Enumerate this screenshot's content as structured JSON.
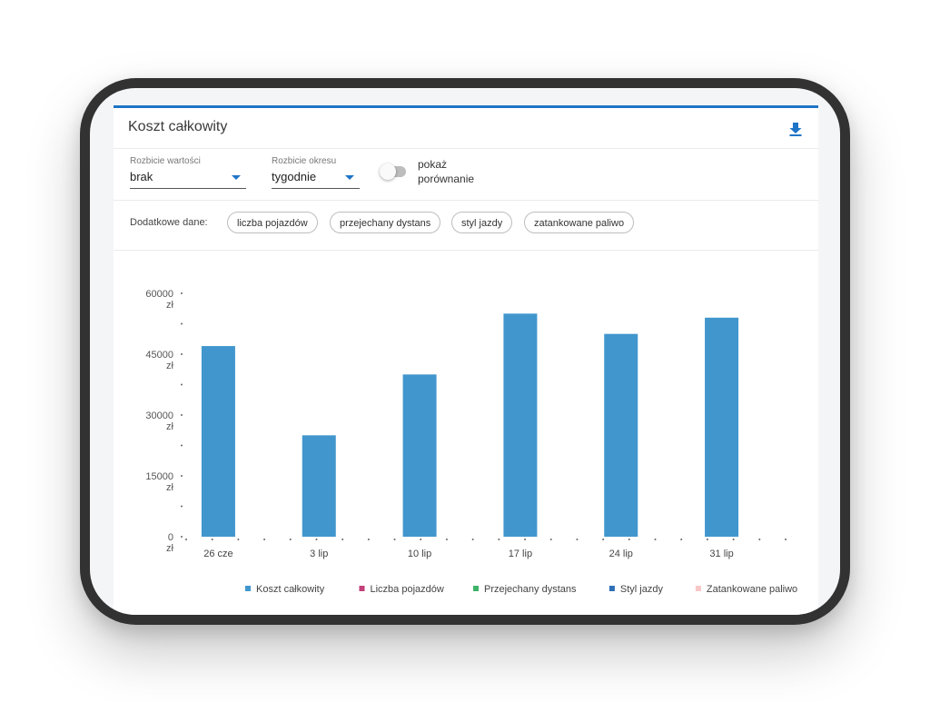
{
  "card": {
    "title": "Koszt całkowity",
    "download_icon": "download-icon"
  },
  "controls": {
    "value_breakdown": {
      "label": "Rozbicie wartości",
      "value": "brak"
    },
    "period_breakdown": {
      "label": "Rozbicie okresu",
      "value": "tygodnie"
    },
    "comparison_toggle": {
      "label_line1": "pokaż",
      "label_line2": "porównanie",
      "on": false
    }
  },
  "extras": {
    "label": "Dodatkowe dane:",
    "chips": [
      "liczba pojazdów",
      "przejechany dystans",
      "styl jazdy",
      "zatankowane paliwo"
    ]
  },
  "colors": {
    "accent": "#1e74c6",
    "bar": "#4196cd"
  },
  "chart_data": {
    "type": "bar",
    "categories": [
      "26 cze",
      "3 lip",
      "10 lip",
      "17 lip",
      "24 lip",
      "31 lip"
    ],
    "series": [
      {
        "name": "Koszt całkowity",
        "values": [
          47000,
          25000,
          40000,
          55000,
          50000,
          54000
        ]
      }
    ],
    "ylim": [
      0,
      60000
    ],
    "yticks": [
      {
        "value": 0,
        "label": "0",
        "unit": "zł"
      },
      {
        "value": 15000,
        "label": "15000",
        "unit": "zł"
      },
      {
        "value": 30000,
        "label": "30000",
        "unit": "zł"
      },
      {
        "value": 45000,
        "label": "45000",
        "unit": "zł"
      },
      {
        "value": 60000,
        "label": "60000",
        "unit": "zł"
      }
    ],
    "legend": [
      {
        "label": "Koszt całkowity",
        "color": "#4196cd"
      },
      {
        "label": "Liczba pojazdów",
        "color": "#c2407a"
      },
      {
        "label": "Przejechany dystans",
        "color": "#3db36a"
      },
      {
        "label": "Styl jazdy",
        "color": "#2f6fb5"
      },
      {
        "label": "Zatankowane paliwo",
        "color": "#f7c6c6"
      }
    ],
    "legend_position": "bottom"
  }
}
